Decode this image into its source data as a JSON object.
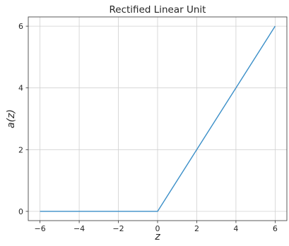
{
  "chart_data": {
    "type": "line",
    "title": "Rectified Linear Unit",
    "xlabel": "z",
    "ylabel": "a(z)",
    "xlim": [
      -6.6,
      6.6
    ],
    "ylim": [
      -0.3,
      6.3
    ],
    "xticks": [
      -6,
      -4,
      -2,
      0,
      2,
      4,
      6
    ],
    "yticks": [
      0,
      2,
      4,
      6
    ],
    "xtick_labels": [
      "−6",
      "−4",
      "−2",
      "0",
      "2",
      "4",
      "6"
    ],
    "ytick_labels": [
      "0",
      "2",
      "4",
      "6"
    ],
    "grid": true,
    "series": [
      {
        "x": [
          -6,
          -4,
          -2,
          0,
          2,
          4,
          6
        ],
        "y": [
          0,
          0,
          0,
          0,
          2,
          4,
          6
        ],
        "color": "#3b8fc8"
      }
    ]
  }
}
